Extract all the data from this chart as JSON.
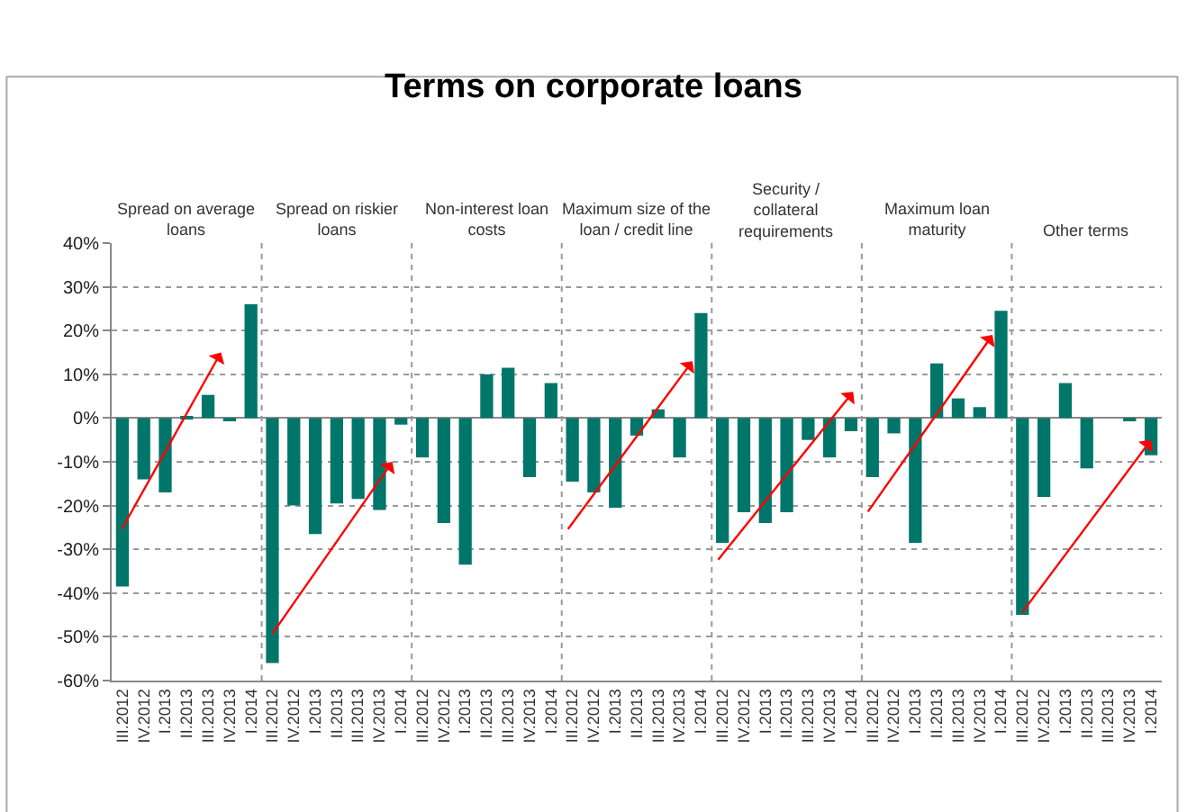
{
  "chart_data": {
    "type": "bar",
    "title": "Terms on corporate loans",
    "annotations": [
      "Spread on average loans",
      "Spread on riskier loans",
      "Non-interest loan costs",
      "Maximum size of the loan / credit line",
      "Security / collateral requirements",
      "Maximum loan maturity",
      "Other terms"
    ],
    "categories": [
      "III.2012",
      "IV.2012",
      "I.2013",
      "II.2013",
      "III.2013",
      "IV.2013",
      "I.2014",
      "III.2012",
      "IV.2012",
      "I.2013",
      "II.2013",
      "III.2013",
      "IV.2013",
      "I.2014",
      "III.2012",
      "IV.2012",
      "I.2013",
      "II.2013",
      "III.2013",
      "IV.2013",
      "I.2014",
      "III.2012",
      "IV.2012",
      "I.2013",
      "II.2013",
      "III.2013",
      "IV.2013",
      "I.2014",
      "III.2012",
      "IV.2012",
      "I.2013",
      "II.2013",
      "III.2013",
      "IV.2013",
      "I.2014",
      "III.2012",
      "IV.2012",
      "I.2013",
      "II.2013",
      "III.2013",
      "IV.2013",
      "I.2014",
      "III.2012",
      "IV.2012",
      "I.2013",
      "II.2013",
      "III.2013",
      "IV.2013",
      "I.2014"
    ],
    "series": [
      {
        "color": "#00766a",
        "values": [
          -38.5,
          -14,
          -17,
          0.3,
          5.3,
          -0.7,
          26,
          -56,
          -20,
          -26.5,
          -19.5,
          -18.5,
          -21,
          -1.5,
          -9,
          -24,
          -33.5,
          10,
          11.5,
          -13.5,
          8,
          -14.5,
          -17,
          -20.5,
          -4,
          2,
          -9,
          24,
          -28.5,
          -21.5,
          -24,
          -21.5,
          -5,
          -9,
          -3,
          -13.5,
          -3.5,
          -28.5,
          12.5,
          4.5,
          2.5,
          24.5,
          -45,
          -18,
          8,
          -11.5,
          0,
          -0.5,
          -8.5
        ]
      }
    ],
    "ylim": [
      -60,
      40
    ],
    "yticks": [
      {
        "value": -60,
        "label": "-60%"
      },
      {
        "value": -50,
        "label": "-50%"
      },
      {
        "value": -40,
        "label": "-40%"
      },
      {
        "value": -30,
        "label": "-30%"
      },
      {
        "value": -20,
        "label": "-20%"
      },
      {
        "value": -10,
        "label": "-10%"
      },
      {
        "value": 0,
        "label": "0%"
      },
      {
        "value": 10,
        "label": "10%"
      },
      {
        "value": 20,
        "label": "20%"
      },
      {
        "value": 30,
        "label": "30%"
      },
      {
        "value": 40,
        "label": "40%"
      }
    ],
    "grid": "y"
  }
}
